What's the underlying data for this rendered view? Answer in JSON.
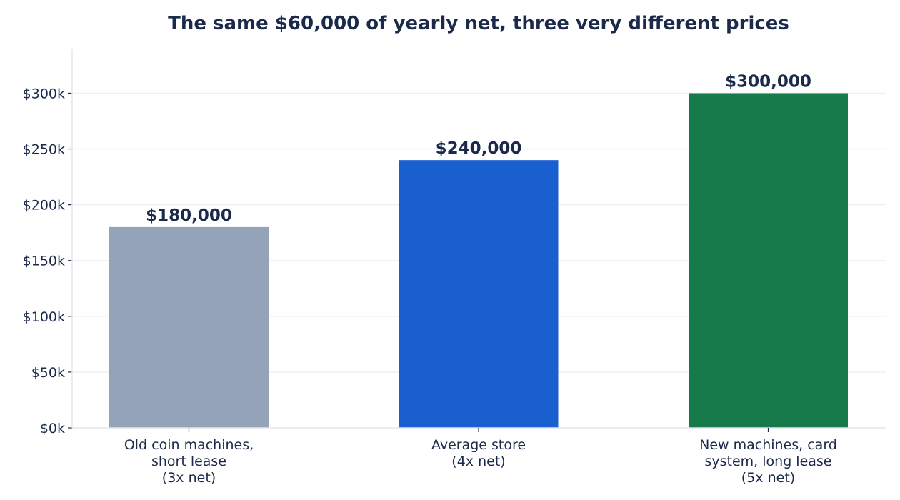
{
  "chart_data": {
    "type": "bar",
    "title": "The same $60,000 of yearly net, three very different prices",
    "xlabel": "",
    "ylabel": "",
    "categories": [
      [
        "Old coin machines,",
        "short lease",
        "(3x net)"
      ],
      [
        "Average store",
        "(4x net)"
      ],
      [
        "New machines, card",
        "system, long lease",
        "(5x net)"
      ]
    ],
    "values": [
      180000,
      240000,
      300000
    ],
    "data_labels": [
      "$180,000",
      "$240,000",
      "$300,000"
    ],
    "bar_colors": [
      "#94a3b8",
      "#1a5fd0",
      "#177a4b"
    ],
    "ylim": [
      0,
      340000
    ],
    "yticks": [
      0,
      50000,
      100000,
      150000,
      200000,
      250000,
      300000
    ],
    "ytick_labels": [
      "$0k",
      "$50k",
      "$100k",
      "$150k",
      "$200k",
      "$250k",
      "$300k"
    ],
    "grid": true,
    "legend": "none"
  }
}
